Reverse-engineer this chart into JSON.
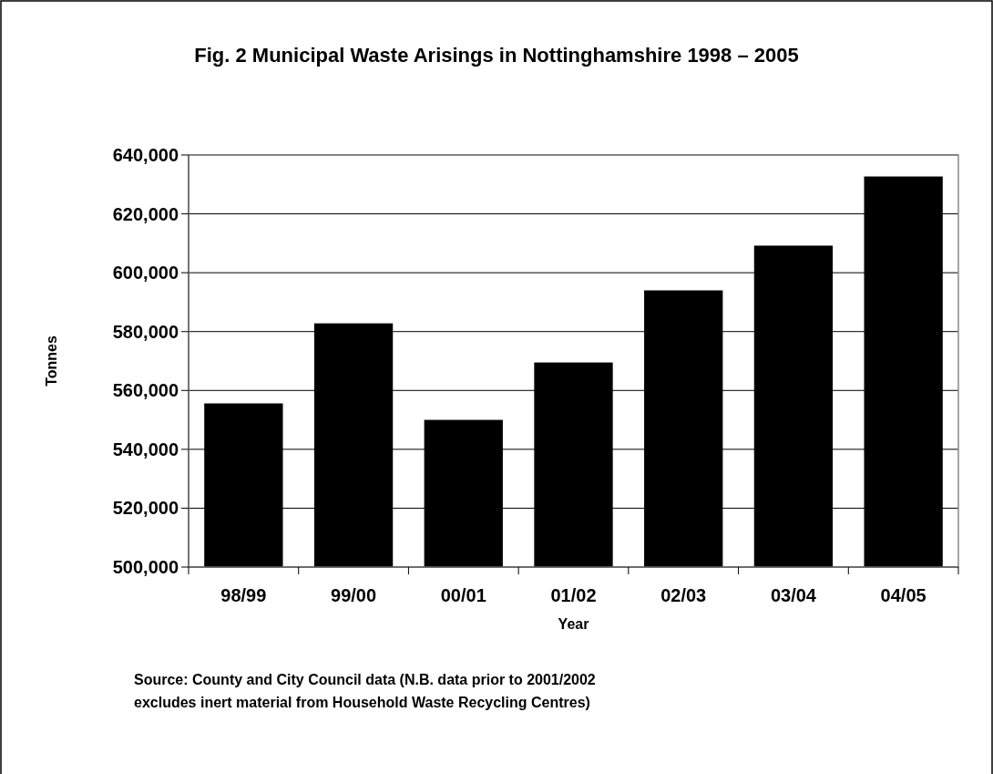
{
  "chart_data": {
    "type": "bar",
    "title": "Fig. 2    Municipal Waste Arisings in Nottinghamshire 1998 – 2005",
    "xlabel": "Year",
    "ylabel": "Tonnes",
    "categories": [
      "98/99",
      "99/00",
      "00/01",
      "01/02",
      "02/03",
      "03/04",
      "04/05"
    ],
    "values": [
      555600,
      582800,
      550000,
      569500,
      594000,
      609200,
      632700
    ],
    "color": "#000000",
    "ylim": [
      500000,
      640000
    ],
    "yticks": [
      {
        "value": 500000,
        "label": "500,000"
      },
      {
        "value": 520000,
        "label": "520,000"
      },
      {
        "value": 540000,
        "label": "540,000"
      },
      {
        "value": 560000,
        "label": "560,000"
      },
      {
        "value": 580000,
        "label": "580,000"
      },
      {
        "value": 600000,
        "label": "600,000"
      },
      {
        "value": 620000,
        "label": "620,000"
      },
      {
        "value": 640000,
        "label": "640,000"
      }
    ],
    "grid": "y",
    "annotations": [
      "Source:  County and City Council data  (N.B. data prior to 2001/2002",
      "excludes inert material from Household Waste Recycling Centres)"
    ]
  }
}
